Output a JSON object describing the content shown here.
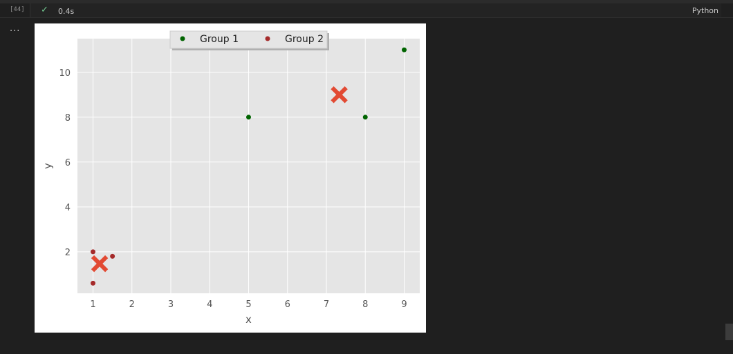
{
  "cell": {
    "execution_count": "[44]",
    "status_icon": "check-icon",
    "duration": "0.4s",
    "language": "Python",
    "output_menu": "..."
  },
  "colors": {
    "group1": "#006400",
    "group2": "#a52a2a",
    "centroid": "#e24a33",
    "plot_bg": "#e5e5e5",
    "grid": "#ffffff"
  },
  "chart_data": {
    "type": "scatter",
    "title": "",
    "xlabel": "x",
    "ylabel": "y",
    "xlim": [
      0.6,
      9.4
    ],
    "ylim": [
      0.15,
      11.5
    ],
    "xticks": [
      1,
      2,
      3,
      4,
      5,
      6,
      7,
      8,
      9
    ],
    "yticks": [
      2,
      4,
      6,
      8,
      10
    ],
    "grid": true,
    "legend_position": "top-center",
    "series": [
      {
        "name": "Group 1",
        "marker": "dot",
        "points": [
          [
            5,
            8
          ],
          [
            8,
            8
          ],
          [
            9,
            11
          ]
        ]
      },
      {
        "name": "Group 2",
        "marker": "dot",
        "points": [
          [
            1,
            2
          ],
          [
            1.5,
            1.8
          ],
          [
            1,
            0.6
          ]
        ]
      }
    ],
    "centroids": {
      "marker": "x",
      "points": [
        [
          7.33,
          9.0
        ],
        [
          1.17,
          1.47
        ]
      ]
    }
  }
}
